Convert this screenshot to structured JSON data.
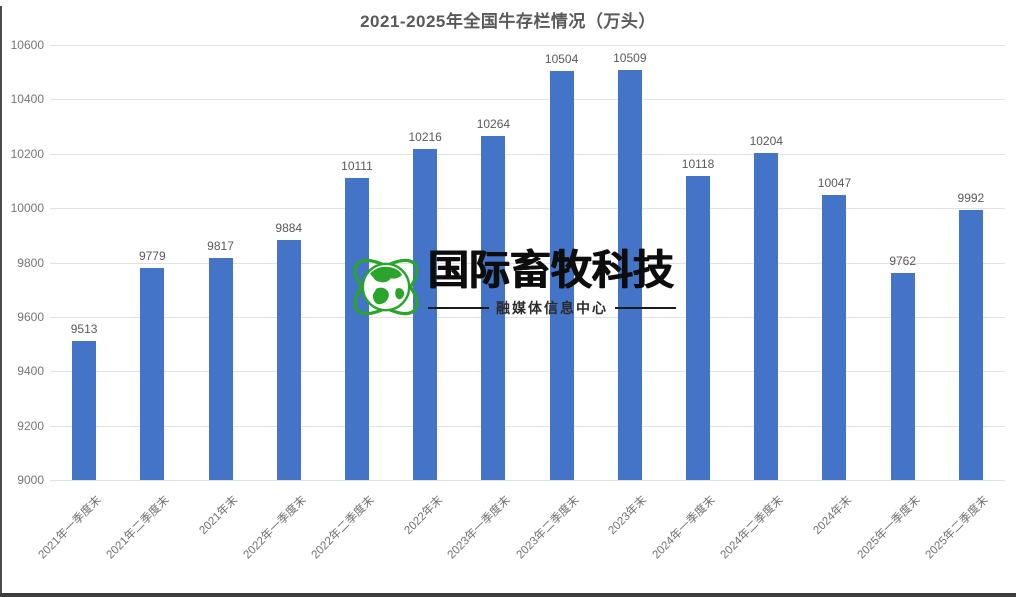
{
  "chart_data": {
    "type": "bar",
    "title": "2021-2025年全国牛存栏情况（万头）",
    "categories": [
      "2021年一季度末",
      "2021年二季度末",
      "2021年末",
      "2022年一季度末",
      "2022年二季度末",
      "2022年末",
      "2023年一季度末",
      "2023年二季度末",
      "2023年末",
      "2024年一季度末",
      "2024年二季度末",
      "2024年末",
      "2025年一季度末",
      "2025年二季度末"
    ],
    "values": [
      9513,
      9779,
      9817,
      9884,
      10111,
      10216,
      10264,
      10504,
      10509,
      10118,
      10204,
      10047,
      9762,
      9992
    ],
    "xlabel": "",
    "ylabel": "",
    "ylim": [
      9000,
      10600
    ],
    "ytick_step": 200,
    "grid": true,
    "legend": "none",
    "bar_color": "#4474c8",
    "gridline_color": "#e2e2e2",
    "title_color": "#595959",
    "tick_label_color": "#757575",
    "value_label_color": "#595959"
  },
  "watermark": {
    "logo_icon": "globe-orbit-icon",
    "logo_color": "#2aa42a",
    "brand": "国际畜牧科技",
    "subtitle": "融媒体信息中心",
    "text_color": "#0d0d0d"
  }
}
